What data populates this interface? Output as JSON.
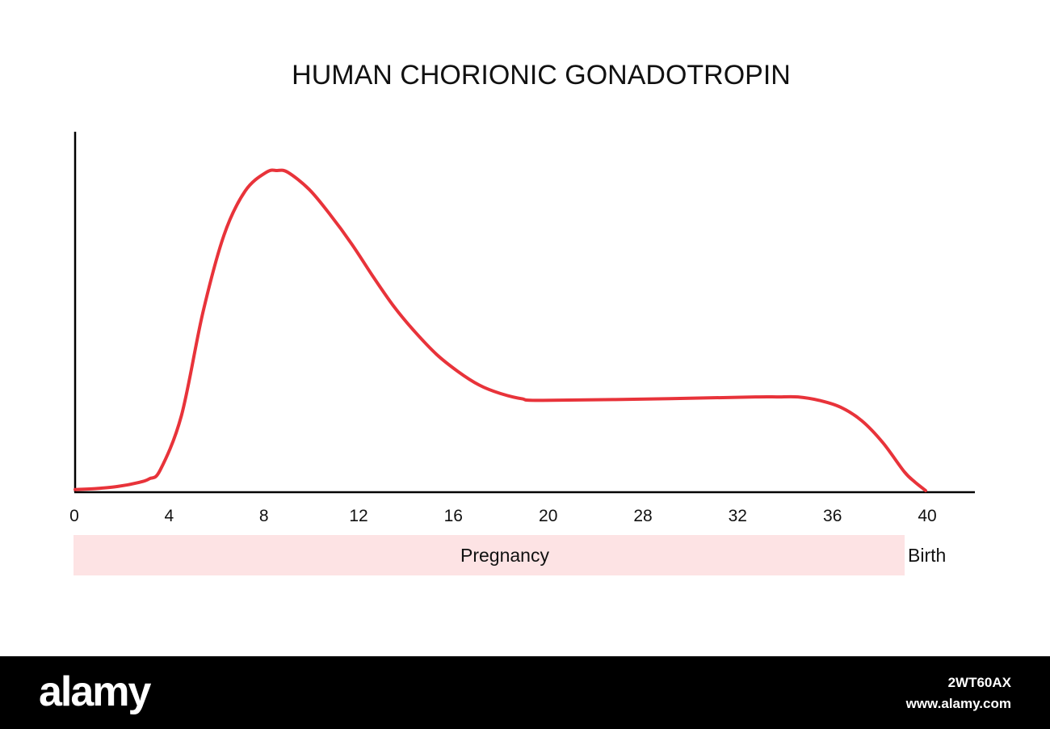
{
  "chart_data": {
    "type": "line",
    "title": "HUMAN CHORIONIC GONADOTROPIN",
    "tick_labels": [
      "0",
      "4",
      "8",
      "12",
      "16",
      "20",
      "28",
      "32",
      "36",
      "40"
    ],
    "x": [
      0,
      1,
      2,
      3,
      3.5,
      4,
      5,
      6,
      7,
      8,
      9,
      9.5,
      10,
      11,
      12,
      13,
      14,
      15,
      16,
      17,
      18,
      19,
      20,
      21,
      22,
      28,
      32,
      33,
      34,
      35,
      36,
      37,
      38,
      39,
      39.5,
      40
    ],
    "series": [
      {
        "color": "#e8333a",
        "values": [
          0.3,
          0.6,
          1.2,
          2.4,
          3.5,
          6.0,
          22,
          52,
          75,
          88,
          93.5,
          94,
          93.5,
          88.5,
          81,
          72.5,
          63,
          54,
          46.5,
          40,
          35,
          31,
          28.5,
          27,
          26.5,
          27,
          27.5,
          27.5,
          27.5,
          26.5,
          24.5,
          20.5,
          14,
          5.5,
          2.5,
          0
        ]
      }
    ],
    "ylim": [
      0,
      100
    ],
    "band": {
      "label": "Pregnancy",
      "color": "#fde3e4"
    },
    "end_label": "Birth"
  },
  "footer": {
    "logo": "alamy",
    "image_id": "2WT60AX",
    "site": "www.alamy.com"
  }
}
